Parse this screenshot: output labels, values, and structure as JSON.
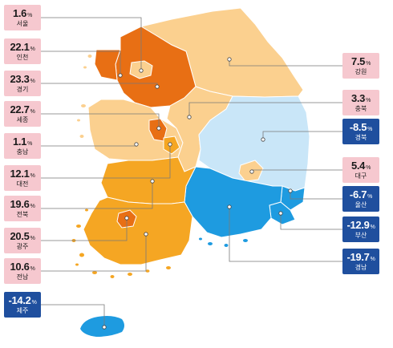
{
  "unit": "%",
  "colors": {
    "high": "#e86f14",
    "mid_high": "#f5a623",
    "mid": "#fbd08f",
    "low_neg": "#c9e6f8",
    "strong_neg": "#1e9be0",
    "pos_box": "#f6c8cf",
    "neg_box": "#1f4f9e",
    "leader": "#7a7a7a"
  },
  "regions": [
    {
      "id": "seoul",
      "name": "서울",
      "value": "1.6",
      "sign": "pos"
    },
    {
      "id": "incheon",
      "name": "인천",
      "value": "22.1",
      "sign": "pos"
    },
    {
      "id": "gyeonggi",
      "name": "경기",
      "value": "23.3",
      "sign": "pos"
    },
    {
      "id": "sejong",
      "name": "세종",
      "value": "22.7",
      "sign": "pos"
    },
    {
      "id": "chungnam",
      "name": "충남",
      "value": "1.1",
      "sign": "pos"
    },
    {
      "id": "daejeon",
      "name": "대전",
      "value": "12.1",
      "sign": "pos"
    },
    {
      "id": "jeonbuk",
      "name": "전북",
      "value": "19.6",
      "sign": "pos"
    },
    {
      "id": "gwangju",
      "name": "광주",
      "value": "20.5",
      "sign": "pos"
    },
    {
      "id": "jeonnam",
      "name": "전남",
      "value": "10.6",
      "sign": "pos"
    },
    {
      "id": "jeju",
      "name": "제주",
      "value": "-14.2",
      "sign": "neg"
    },
    {
      "id": "gangwon",
      "name": "강원",
      "value": "7.5",
      "sign": "pos"
    },
    {
      "id": "chungbuk",
      "name": "충북",
      "value": "3.3",
      "sign": "pos"
    },
    {
      "id": "gyeongbuk",
      "name": "경북",
      "value": "-8.5",
      "sign": "neg"
    },
    {
      "id": "daegu",
      "name": "대구",
      "value": "5.4",
      "sign": "pos"
    },
    {
      "id": "ulsan",
      "name": "울산",
      "value": "-6.7",
      "sign": "neg"
    },
    {
      "id": "busan",
      "name": "부산",
      "value": "-12.9",
      "sign": "neg"
    },
    {
      "id": "gyeongnam",
      "name": "경남",
      "value": "-19.7",
      "sign": "neg"
    }
  ]
}
